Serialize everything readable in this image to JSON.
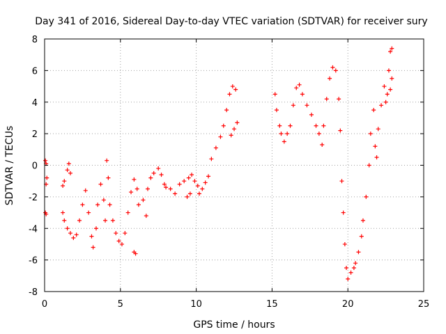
{
  "chart_data": {
    "type": "scatter",
    "title": "Day 341 of 2016, Sidereal Day-to-day VTEC variation (SDTVAR) for receiver sury",
    "xlabel": "GPS time / hours",
    "ylabel": "SDTVAR / TECUs",
    "xlim": [
      0,
      25
    ],
    "ylim": [
      -8,
      8
    ],
    "xticks": [
      0,
      5,
      10,
      15,
      20,
      25
    ],
    "yticks": [
      -8,
      -6,
      -4,
      -2,
      0,
      2,
      4,
      6,
      8
    ],
    "grid": true,
    "marker": "+",
    "color": "#ff0000",
    "series": [
      {
        "name": "SDTVAR",
        "points": [
          [
            0.05,
            0.3
          ],
          [
            0.1,
            0.1
          ],
          [
            0.15,
            -0.8
          ],
          [
            0.1,
            -1.2
          ],
          [
            0.05,
            -3.0
          ],
          [
            0.1,
            -3.1
          ],
          [
            1.2,
            -1.3
          ],
          [
            1.3,
            -1.0
          ],
          [
            1.5,
            -0.3
          ],
          [
            1.6,
            0.1
          ],
          [
            1.7,
            -0.5
          ],
          [
            1.2,
            -3.0
          ],
          [
            1.3,
            -3.5
          ],
          [
            1.5,
            -4.0
          ],
          [
            1.7,
            -4.3
          ],
          [
            1.9,
            -4.6
          ],
          [
            2.1,
            -4.4
          ],
          [
            2.3,
            -3.5
          ],
          [
            2.5,
            -2.5
          ],
          [
            2.7,
            -1.6
          ],
          [
            2.9,
            -3.0
          ],
          [
            3.1,
            -4.5
          ],
          [
            3.2,
            -5.2
          ],
          [
            3.4,
            -4.0
          ],
          [
            3.5,
            -2.5
          ],
          [
            3.7,
            -1.2
          ],
          [
            3.9,
            -2.2
          ],
          [
            4.0,
            -3.5
          ],
          [
            4.1,
            0.3
          ],
          [
            4.2,
            -0.8
          ],
          [
            4.3,
            -2.5
          ],
          [
            4.5,
            -3.5
          ],
          [
            4.7,
            -4.3
          ],
          [
            4.9,
            -4.8
          ],
          [
            5.1,
            -5.0
          ],
          [
            5.3,
            -4.3
          ],
          [
            5.5,
            -3.0
          ],
          [
            5.7,
            -1.7
          ],
          [
            5.9,
            -0.9
          ],
          [
            6.1,
            -1.5
          ],
          [
            6.2,
            -2.5
          ],
          [
            5.9,
            -5.5
          ],
          [
            6.0,
            -5.6
          ],
          [
            6.7,
            -3.2
          ],
          [
            6.5,
            -2.2
          ],
          [
            6.8,
            -1.5
          ],
          [
            7.0,
            -0.8
          ],
          [
            7.2,
            -0.5
          ],
          [
            7.5,
            -0.2
          ],
          [
            7.7,
            -0.6
          ],
          [
            7.9,
            -1.2
          ],
          [
            8.0,
            -1.4
          ],
          [
            8.3,
            -1.5
          ],
          [
            8.6,
            -1.8
          ],
          [
            8.9,
            -1.2
          ],
          [
            9.2,
            -1.0
          ],
          [
            9.4,
            -2.0
          ],
          [
            9.5,
            -0.8
          ],
          [
            9.6,
            -1.8
          ],
          [
            9.7,
            -0.6
          ],
          [
            9.9,
            -1.0
          ],
          [
            10.1,
            -1.3
          ],
          [
            10.2,
            -1.8
          ],
          [
            10.4,
            -1.5
          ],
          [
            10.6,
            -1.1
          ],
          [
            10.8,
            -0.7
          ],
          [
            11.0,
            0.4
          ],
          [
            11.3,
            1.1
          ],
          [
            11.6,
            1.8
          ],
          [
            11.8,
            2.5
          ],
          [
            12.0,
            3.5
          ],
          [
            12.2,
            4.5
          ],
          [
            12.4,
            5.0
          ],
          [
            12.6,
            4.8
          ],
          [
            12.3,
            1.9
          ],
          [
            12.5,
            2.3
          ],
          [
            12.7,
            2.7
          ],
          [
            15.2,
            4.5
          ],
          [
            15.3,
            3.5
          ],
          [
            15.5,
            2.5
          ],
          [
            15.6,
            2.0
          ],
          [
            15.8,
            1.5
          ],
          [
            16.0,
            2.0
          ],
          [
            16.2,
            2.5
          ],
          [
            16.4,
            3.8
          ],
          [
            16.6,
            4.9
          ],
          [
            16.8,
            5.1
          ],
          [
            17.0,
            4.5
          ],
          [
            17.3,
            3.8
          ],
          [
            17.6,
            3.2
          ],
          [
            17.9,
            2.5
          ],
          [
            18.1,
            2.0
          ],
          [
            18.3,
            1.3
          ],
          [
            18.4,
            2.5
          ],
          [
            18.6,
            4.2
          ],
          [
            18.8,
            5.5
          ],
          [
            19.0,
            6.2
          ],
          [
            19.2,
            6.0
          ],
          [
            19.4,
            4.2
          ],
          [
            19.5,
            2.2
          ],
          [
            19.6,
            -1.0
          ],
          [
            19.7,
            -3.0
          ],
          [
            19.8,
            -5.0
          ],
          [
            19.9,
            -6.5
          ],
          [
            20.0,
            -7.2
          ],
          [
            20.2,
            -6.8
          ],
          [
            20.4,
            -6.5
          ],
          [
            20.5,
            -6.2
          ],
          [
            20.7,
            -5.5
          ],
          [
            20.9,
            -4.5
          ],
          [
            21.0,
            -3.5
          ],
          [
            21.2,
            -2.0
          ],
          [
            21.4,
            0.0
          ],
          [
            21.5,
            2.0
          ],
          [
            21.7,
            3.5
          ],
          [
            21.8,
            1.2
          ],
          [
            21.9,
            0.5
          ],
          [
            22.0,
            2.3
          ],
          [
            22.2,
            3.8
          ],
          [
            22.4,
            5.0
          ],
          [
            22.5,
            4.0
          ],
          [
            22.6,
            4.5
          ],
          [
            22.7,
            6.0
          ],
          [
            22.8,
            7.2
          ],
          [
            22.9,
            7.4
          ],
          [
            22.9,
            5.5
          ],
          [
            22.8,
            4.8
          ]
        ]
      }
    ]
  }
}
